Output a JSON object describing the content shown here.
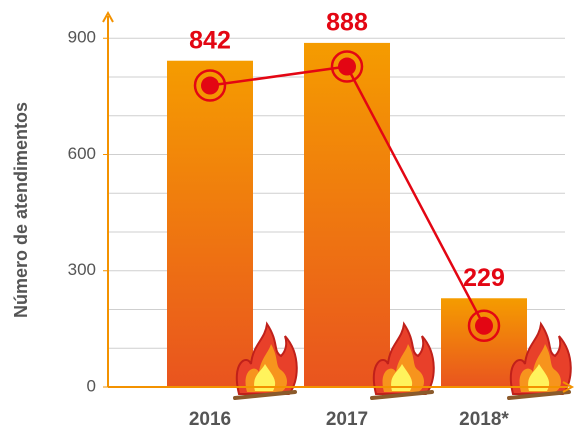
{
  "chart_data": {
    "type": "bar",
    "y_label": "Número de atendimentos",
    "categories": [
      "2016",
      "2017",
      "2018*"
    ],
    "series": [
      {
        "type": "bar",
        "values": [
          842,
          888,
          229
        ],
        "color": "#f39200"
      },
      {
        "type": "line",
        "values": [
          778,
          827,
          158
        ],
        "color": "#e30613"
      }
    ],
    "ylim": [
      0,
      960
    ],
    "yticks": [
      0,
      300,
      600,
      900
    ],
    "grid_ticks": [
      100,
      200,
      300,
      400,
      500,
      600,
      700,
      800,
      900
    ],
    "grid": true
  }
}
